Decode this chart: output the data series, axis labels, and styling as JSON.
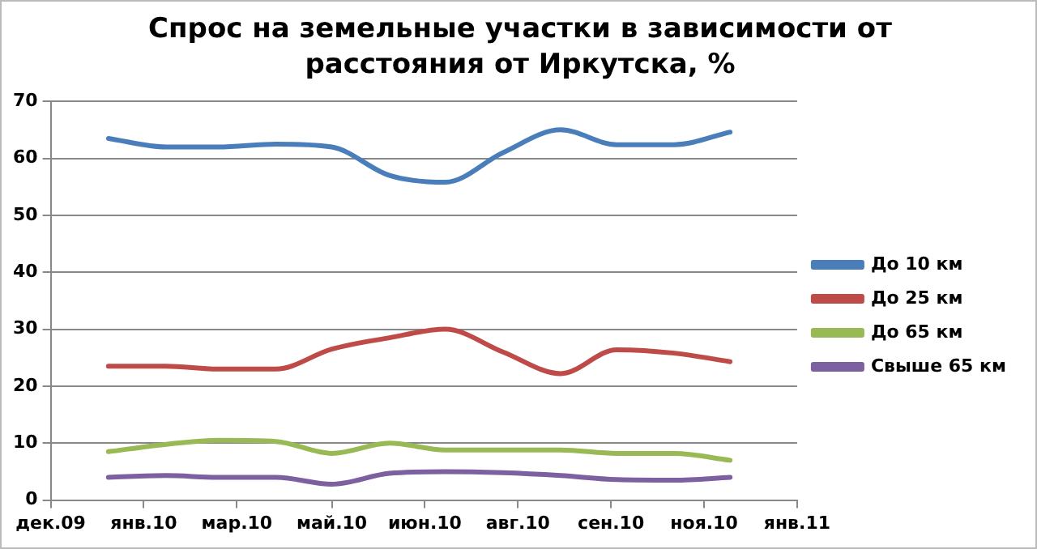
{
  "chart_data": {
    "type": "line",
    "title": "Спрос на земельные участки в зависимости от расстояния от Иркутска, %",
    "x": [
      "2010-01-01",
      "2010-02-01",
      "2010-03-01",
      "2010-04-01",
      "2010-05-01",
      "2010-06-01",
      "2010-07-01",
      "2010-08-01",
      "2010-09-01",
      "2010-10-01",
      "2010-11-01",
      "2010-12-01"
    ],
    "series": [
      {
        "name": "До 10 км",
        "color": "#4a7ebb",
        "values": [
          63.5,
          62,
          62,
          62.5,
          62,
          57,
          55.8,
          61,
          65,
          62.4,
          62.4,
          64.6
        ]
      },
      {
        "name": "До 25 км",
        "color": "#be4b48",
        "values": [
          23.5,
          23.5,
          23,
          23,
          26.5,
          28.5,
          30,
          26,
          22.2,
          26.4,
          25.8,
          24.3
        ]
      },
      {
        "name": "До 65 км",
        "color": "#98b954",
        "values": [
          8.5,
          9.8,
          10.5,
          10.3,
          8.2,
          10,
          8.8,
          8.8,
          8.8,
          8.2,
          8.2,
          7
        ]
      },
      {
        "name": "Свыше 65 км",
        "color": "#7d60a0",
        "values": [
          4,
          4.3,
          4,
          4,
          2.8,
          4.7,
          5,
          4.8,
          4.3,
          3.6,
          3.5,
          4
        ]
      }
    ],
    "xlim": [
      "2009-12-01",
      "2011-01-06"
    ],
    "xticks": [
      {
        "value": "2009-12-01",
        "label": "дек.09"
      },
      {
        "value": "2010-01-20",
        "label": "янв.10"
      },
      {
        "value": "2010-03-11",
        "label": "мар.10"
      },
      {
        "value": "2010-05-01",
        "label": "май.10"
      },
      {
        "value": "2010-06-20",
        "label": "июн.10"
      },
      {
        "value": "2010-08-09",
        "label": "авг.10"
      },
      {
        "value": "2010-09-28",
        "label": "сен.10"
      },
      {
        "value": "2010-11-17",
        "label": "ноя.10"
      },
      {
        "value": "2011-01-06",
        "label": "янв.11"
      }
    ],
    "ylim": [
      0,
      70
    ],
    "yticks": [
      0,
      10,
      20,
      30,
      40,
      50,
      60,
      70
    ],
    "grid": "y",
    "legend": "right",
    "marker": "none",
    "line_style": "solid"
  }
}
